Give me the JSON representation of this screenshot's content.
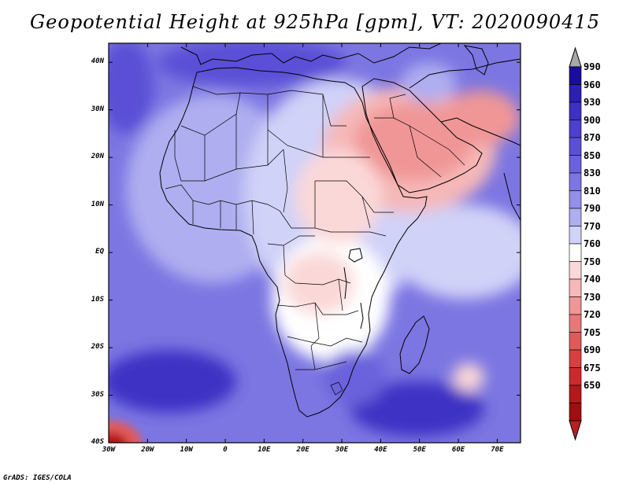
{
  "title": "Geopotential Height at 925hPa [gpm], VT: 2020090415",
  "credit": "GrADS: IGES/COLA",
  "map": {
    "variable": "Geopotential Height",
    "level": "925hPa",
    "units": "gpm",
    "valid_time": "2020090415",
    "lat_labels": [
      "40N",
      "30N",
      "20N",
      "10N",
      "EQ",
      "10S",
      "20S",
      "30S",
      "40S"
    ],
    "lon_labels": [
      "30W",
      "20W",
      "10W",
      "0",
      "10E",
      "20E",
      "30E",
      "40E",
      "50E",
      "60E",
      "70E"
    ],
    "lat_range": [
      -40,
      44
    ],
    "lon_range": [
      -30,
      76
    ]
  },
  "colorbar": {
    "levels": [
      "990",
      "960",
      "930",
      "900",
      "870",
      "850",
      "830",
      "810",
      "790",
      "770",
      "760",
      "750",
      "740",
      "730",
      "720",
      "705",
      "690",
      "675",
      "650"
    ],
    "colors": [
      "#1a0ca0",
      "#2d1eb4",
      "#3d30c4",
      "#4c40cc",
      "#5a50d6",
      "#6a62dc",
      "#7c76e2",
      "#9290e8",
      "#aeaef0",
      "#d0d2f8",
      "#ffffff",
      "#fbd8d8",
      "#f6b8b8",
      "#f09696",
      "#e87878",
      "#e05a5a",
      "#d84040",
      "#cc2a2a",
      "#b41818",
      "#a00e0e"
    ],
    "over_color": "#a8a8a8",
    "under_color": "#b82020"
  }
}
